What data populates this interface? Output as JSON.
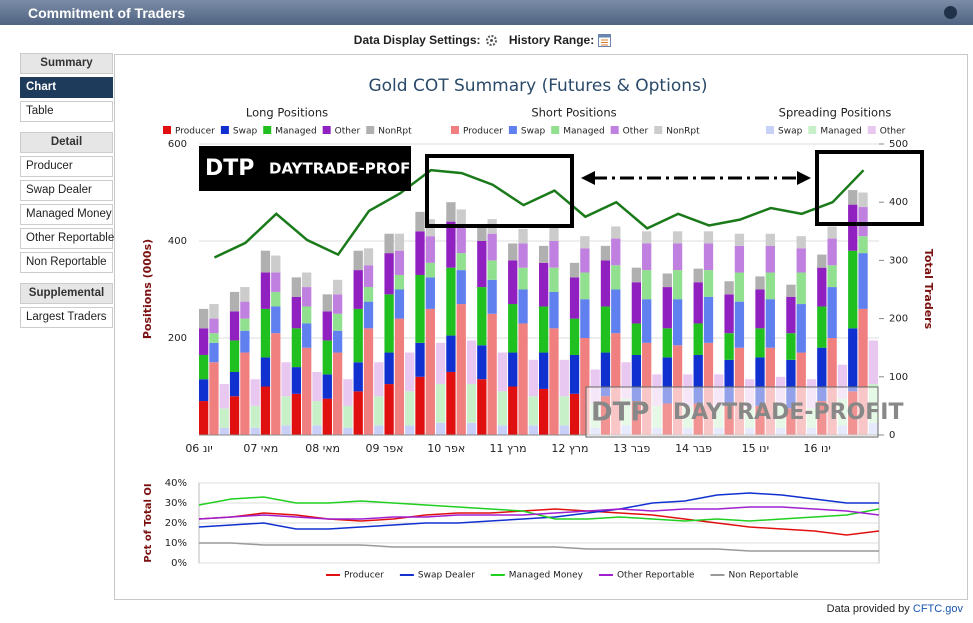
{
  "header": {
    "title": "Commitment of Traders"
  },
  "toolbar": {
    "settings_label": "Data Display Settings:",
    "history_label": "History Range:"
  },
  "sidebar": {
    "sections": [
      {
        "title": "Summary",
        "items": [
          "Chart",
          "Table"
        ],
        "selected": "Chart"
      },
      {
        "title": "Detail",
        "items": [
          "Producer",
          "Swap Dealer",
          "Managed Money",
          "Other Reportable",
          "Non Reportable"
        ]
      },
      {
        "title": "Supplemental",
        "items": [
          "Largest Traders"
        ]
      }
    ]
  },
  "watermark": {
    "logo": "DTP",
    "text": "DAYTRADE-PROFIT"
  },
  "chart_data": [
    {
      "type": "stacked-bar",
      "title": "Gold COT Summary (Futures & Options)",
      "ylabel": "Positions (000s)",
      "y2label": "Total Traders",
      "categories": [
        "06 יונ",
        null,
        "07 מאי",
        null,
        "08 מאי",
        null,
        "09 אפר",
        null,
        "10 אפר",
        null,
        "11 מרץ",
        null,
        "12 מרץ",
        null,
        "13 פבר",
        null,
        "14 פבר",
        null,
        "15 ינו",
        null,
        "16 ינו",
        null
      ],
      "ylim": [
        0,
        600
      ],
      "yticks": [
        200,
        400,
        600
      ],
      "y2lim": [
        0,
        500
      ],
      "y2ticks": [
        0,
        100,
        200,
        300,
        400,
        500
      ],
      "grid": true,
      "groups": [
        {
          "title": "Long Positions",
          "series": [
            {
              "name": "Producer",
              "color": "#e01010",
              "values": [
                70,
                80,
                100,
                85,
                75,
                90,
                105,
                120,
                130,
                115,
                100,
                95,
                85,
                80,
                70,
                65,
                65,
                60,
                60,
                55,
                70,
                90
              ]
            },
            {
              "name": "Swap",
              "color": "#1030d0",
              "values": [
                45,
                50,
                60,
                55,
                50,
                60,
                65,
                70,
                75,
                70,
                70,
                75,
                80,
                90,
                95,
                95,
                100,
                95,
                100,
                100,
                110,
                130
              ]
            },
            {
              "name": "Managed",
              "color": "#20c020",
              "values": [
                50,
                65,
                100,
                80,
                70,
                110,
                120,
                140,
                140,
                120,
                100,
                95,
                75,
                95,
                65,
                60,
                65,
                55,
                60,
                55,
                85,
                160
              ]
            },
            {
              "name": "Other",
              "color": "#9020c0",
              "values": [
                55,
                60,
                75,
                65,
                60,
                80,
                85,
                90,
                95,
                95,
                90,
                90,
                85,
                95,
                85,
                85,
                85,
                80,
                80,
                75,
                80,
                95
              ]
            },
            {
              "name": "NonRpt",
              "color": "#b0b0b0",
              "values": [
                40,
                40,
                45,
                40,
                35,
                40,
                40,
                40,
                40,
                35,
                35,
                35,
                30,
                30,
                30,
                28,
                28,
                27,
                27,
                25,
                27,
                30
              ]
            }
          ]
        },
        {
          "title": "Short Positions",
          "series": [
            {
              "name": "Producer",
              "color": "#f08080",
              "values": [
                150,
                170,
                210,
                180,
                170,
                220,
                240,
                260,
                270,
                250,
                230,
                220,
                200,
                210,
                190,
                185,
                190,
                180,
                180,
                170,
                200,
                260
              ]
            },
            {
              "name": "Swap",
              "color": "#6080f0",
              "values": [
                40,
                45,
                55,
                50,
                45,
                55,
                60,
                65,
                70,
                70,
                70,
                75,
                80,
                90,
                90,
                95,
                95,
                95,
                100,
                100,
                105,
                115
              ]
            },
            {
              "name": "Managed",
              "color": "#90e090",
              "values": [
                20,
                25,
                30,
                35,
                35,
                30,
                30,
                30,
                35,
                40,
                45,
                50,
                55,
                50,
                60,
                60,
                55,
                60,
                55,
                65,
                45,
                35
              ]
            },
            {
              "name": "Other",
              "color": "#c080e0",
              "values": [
                30,
                35,
                40,
                40,
                40,
                45,
                50,
                55,
                55,
                55,
                50,
                55,
                50,
                55,
                55,
                55,
                55,
                55,
                55,
                50,
                55,
                60
              ]
            },
            {
              "name": "NonRpt",
              "color": "#cccccc",
              "values": [
                30,
                30,
                35,
                30,
                30,
                35,
                35,
                35,
                35,
                30,
                30,
                30,
                25,
                25,
                25,
                25,
                25,
                25,
                25,
                25,
                25,
                30
              ]
            }
          ]
        },
        {
          "title": "Spreading Positions",
          "series": [
            {
              "name": "Swap",
              "color": "#c8d0f8",
              "values": [
                15,
                15,
                20,
                20,
                15,
                20,
                20,
                25,
                25,
                20,
                20,
                20,
                15,
                20,
                15,
                15,
                15,
                15,
                15,
                15,
                20,
                25
              ]
            },
            {
              "name": "Managed",
              "color": "#c8f0c8",
              "values": [
                40,
                45,
                60,
                50,
                45,
                60,
                70,
                80,
                80,
                70,
                60,
                60,
                50,
                55,
                45,
                45,
                45,
                40,
                45,
                40,
                55,
                80
              ]
            },
            {
              "name": "Other",
              "color": "#e8c8f0",
              "values": [
                50,
                55,
                70,
                60,
                55,
                70,
                80,
                85,
                90,
                80,
                75,
                75,
                70,
                75,
                65,
                65,
                65,
                60,
                60,
                60,
                70,
                90
              ]
            }
          ]
        }
      ],
      "total_traders": {
        "axis": "y2",
        "color": "#1a7a1a",
        "values": [
          305,
          330,
          380,
          335,
          310,
          385,
          415,
          455,
          450,
          430,
          395,
          420,
          375,
          400,
          355,
          380,
          360,
          370,
          390,
          380,
          400,
          455
        ]
      }
    },
    {
      "type": "line",
      "ylabel": "Pct of Total OI",
      "ylim": [
        0,
        40
      ],
      "yticks": [
        {
          "value": 0,
          "label": "0%"
        },
        {
          "value": 10,
          "label": "10%"
        },
        {
          "value": 20,
          "label": "20%"
        },
        {
          "value": 30,
          "label": "30%"
        },
        {
          "value": 40,
          "label": "40%"
        }
      ],
      "grid": true,
      "series": [
        {
          "name": "Producer",
          "color": "#e01010",
          "values": [
            22,
            23,
            25,
            24,
            22,
            21,
            22,
            24,
            25,
            25,
            26,
            27,
            26,
            25,
            24,
            22,
            20,
            18,
            17,
            16,
            14,
            16
          ]
        },
        {
          "name": "Swap Dealer",
          "color": "#1030d0",
          "values": [
            18,
            19,
            20,
            17,
            17,
            18,
            19,
            20,
            20,
            21,
            22,
            23,
            25,
            27,
            30,
            31,
            34,
            35,
            34,
            32,
            30,
            30
          ]
        },
        {
          "name": "Managed Money",
          "color": "#20d020",
          "values": [
            29,
            32,
            33,
            30,
            30,
            31,
            30,
            29,
            28,
            27,
            26,
            22,
            22,
            23,
            22,
            21,
            22,
            21,
            22,
            23,
            24,
            27
          ]
        },
        {
          "name": "Other Reportable",
          "color": "#a020d0",
          "values": [
            22,
            23,
            24,
            23,
            22,
            22,
            23,
            23,
            24,
            24,
            24,
            25,
            26,
            27,
            26,
            27,
            27,
            28,
            28,
            27,
            26,
            24
          ]
        },
        {
          "name": "Non Reportable",
          "color": "#999999",
          "values": [
            10,
            10,
            9,
            9,
            9,
            9,
            8,
            8,
            8,
            8,
            8,
            8,
            7,
            7,
            7,
            7,
            7,
            6,
            6,
            6,
            6,
            6
          ]
        }
      ]
    }
  ],
  "footer": {
    "text": "Data provided by",
    "link": "CFTC.gov"
  }
}
